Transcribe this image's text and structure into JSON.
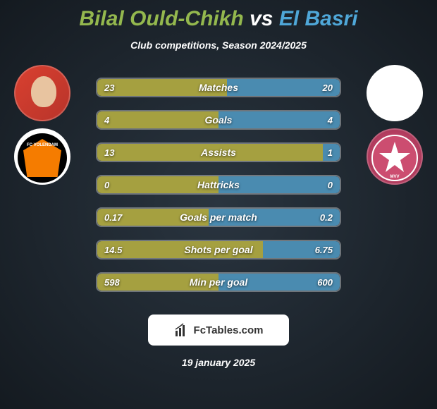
{
  "header": {
    "player1": "Bilal Ould-Chikh",
    "vs": "vs",
    "player2": "El Basri",
    "subtitle": "Club competitions, Season 2024/2025"
  },
  "stats": [
    {
      "label": "Matches",
      "left_val": "23",
      "right_val": "20",
      "left_pct": 53.5,
      "right_pct": 46.5
    },
    {
      "label": "Goals",
      "left_val": "4",
      "right_val": "4",
      "left_pct": 50.0,
      "right_pct": 50.0
    },
    {
      "label": "Assists",
      "left_val": "13",
      "right_val": "1",
      "left_pct": 92.9,
      "right_pct": 7.1
    },
    {
      "label": "Hattricks",
      "left_val": "0",
      "right_val": "0",
      "left_pct": 50.0,
      "right_pct": 50.0
    },
    {
      "label": "Goals per match",
      "left_val": "0.17",
      "right_val": "0.2",
      "left_pct": 45.9,
      "right_pct": 54.1
    },
    {
      "label": "Shots per goal",
      "left_val": "14.5",
      "right_val": "6.75",
      "left_pct": 68.2,
      "right_pct": 31.8
    },
    {
      "label": "Min per goal",
      "left_val": "598",
      "right_val": "600",
      "left_pct": 49.9,
      "right_pct": 50.1
    }
  ],
  "colors": {
    "p1": "#94b84e",
    "p2": "#4fa7d8",
    "bar_left": "#a5a040",
    "bar_right": "#4a8bb0"
  },
  "brand": "FcTables.com",
  "date": "19 january 2025",
  "clubs": {
    "left": "FC VOLENDAM",
    "right": "MVV"
  }
}
